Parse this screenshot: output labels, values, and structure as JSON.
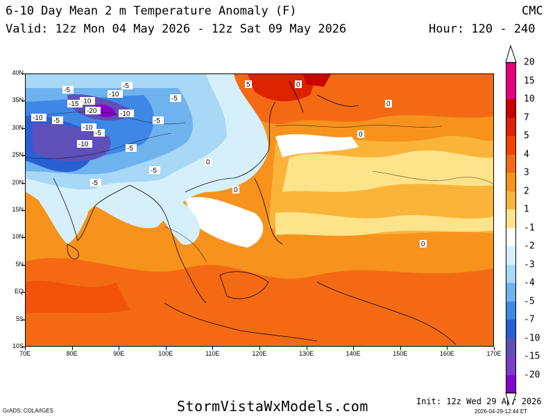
{
  "header": {
    "title": "6-10 Day Mean 2 m Temperature Anomaly (F)",
    "model": "CMC",
    "valid": "Valid: 12z Mon 04 May 2026 - 12z Sat 09 May 2026",
    "hour": "Hour: 120 - 240"
  },
  "axes": {
    "lat_labels": [
      "40N",
      "35N",
      "30N",
      "25N",
      "20N",
      "15N",
      "10N",
      "5N",
      "EQ",
      "5S",
      "10S"
    ],
    "lon_labels": [
      "70E",
      "80E",
      "90E",
      "100E",
      "110E",
      "120E",
      "130E",
      "140E",
      "150E",
      "160E",
      "170E"
    ]
  },
  "colorbar": {
    "labels": [
      "20",
      "15",
      "10",
      "7",
      "5",
      "4",
      "3",
      "2",
      "1",
      "-1",
      "-2",
      "-3",
      "-4",
      "-5",
      "-7",
      "-10",
      "-15",
      "-20"
    ],
    "colors": [
      "#e8007a",
      "#e60080",
      "#cc0000",
      "#dd2200",
      "#ee4400",
      "#f46a14",
      "#f7921c",
      "#fbb43a",
      "#fde48a",
      "#ffffff",
      "#d6f0fb",
      "#a8d8f5",
      "#6eb2ee",
      "#3f87e6",
      "#2a5fd4",
      "#5e50b8",
      "#7a3fc8",
      "#8800cc"
    ]
  },
  "map_labels": [
    {
      "text": "-5"
    },
    {
      "text": "-10"
    },
    {
      "text": "-10"
    },
    {
      "text": "-15"
    },
    {
      "text": "-20"
    },
    {
      "text": "-10"
    },
    {
      "text": "-10"
    },
    {
      "text": "-5"
    },
    {
      "text": "-5"
    },
    {
      "text": "-5"
    },
    {
      "text": "-5"
    },
    {
      "text": "-10"
    },
    {
      "text": "-5"
    },
    {
      "text": "-5"
    },
    {
      "text": "-5"
    },
    {
      "text": "-10"
    },
    {
      "text": "-5"
    },
    {
      "text": "5"
    },
    {
      "text": "0"
    },
    {
      "text": "0"
    },
    {
      "text": "0"
    },
    {
      "text": "0"
    },
    {
      "text": "0"
    },
    {
      "text": "0"
    }
  ],
  "footer": {
    "site": "StormVistaWxModels.com",
    "grads": "GrADS: COLA/IGES",
    "init": "Init: 12z Wed 29 Apr 2026",
    "stamp": "2026-04-29-12:44 ET"
  }
}
